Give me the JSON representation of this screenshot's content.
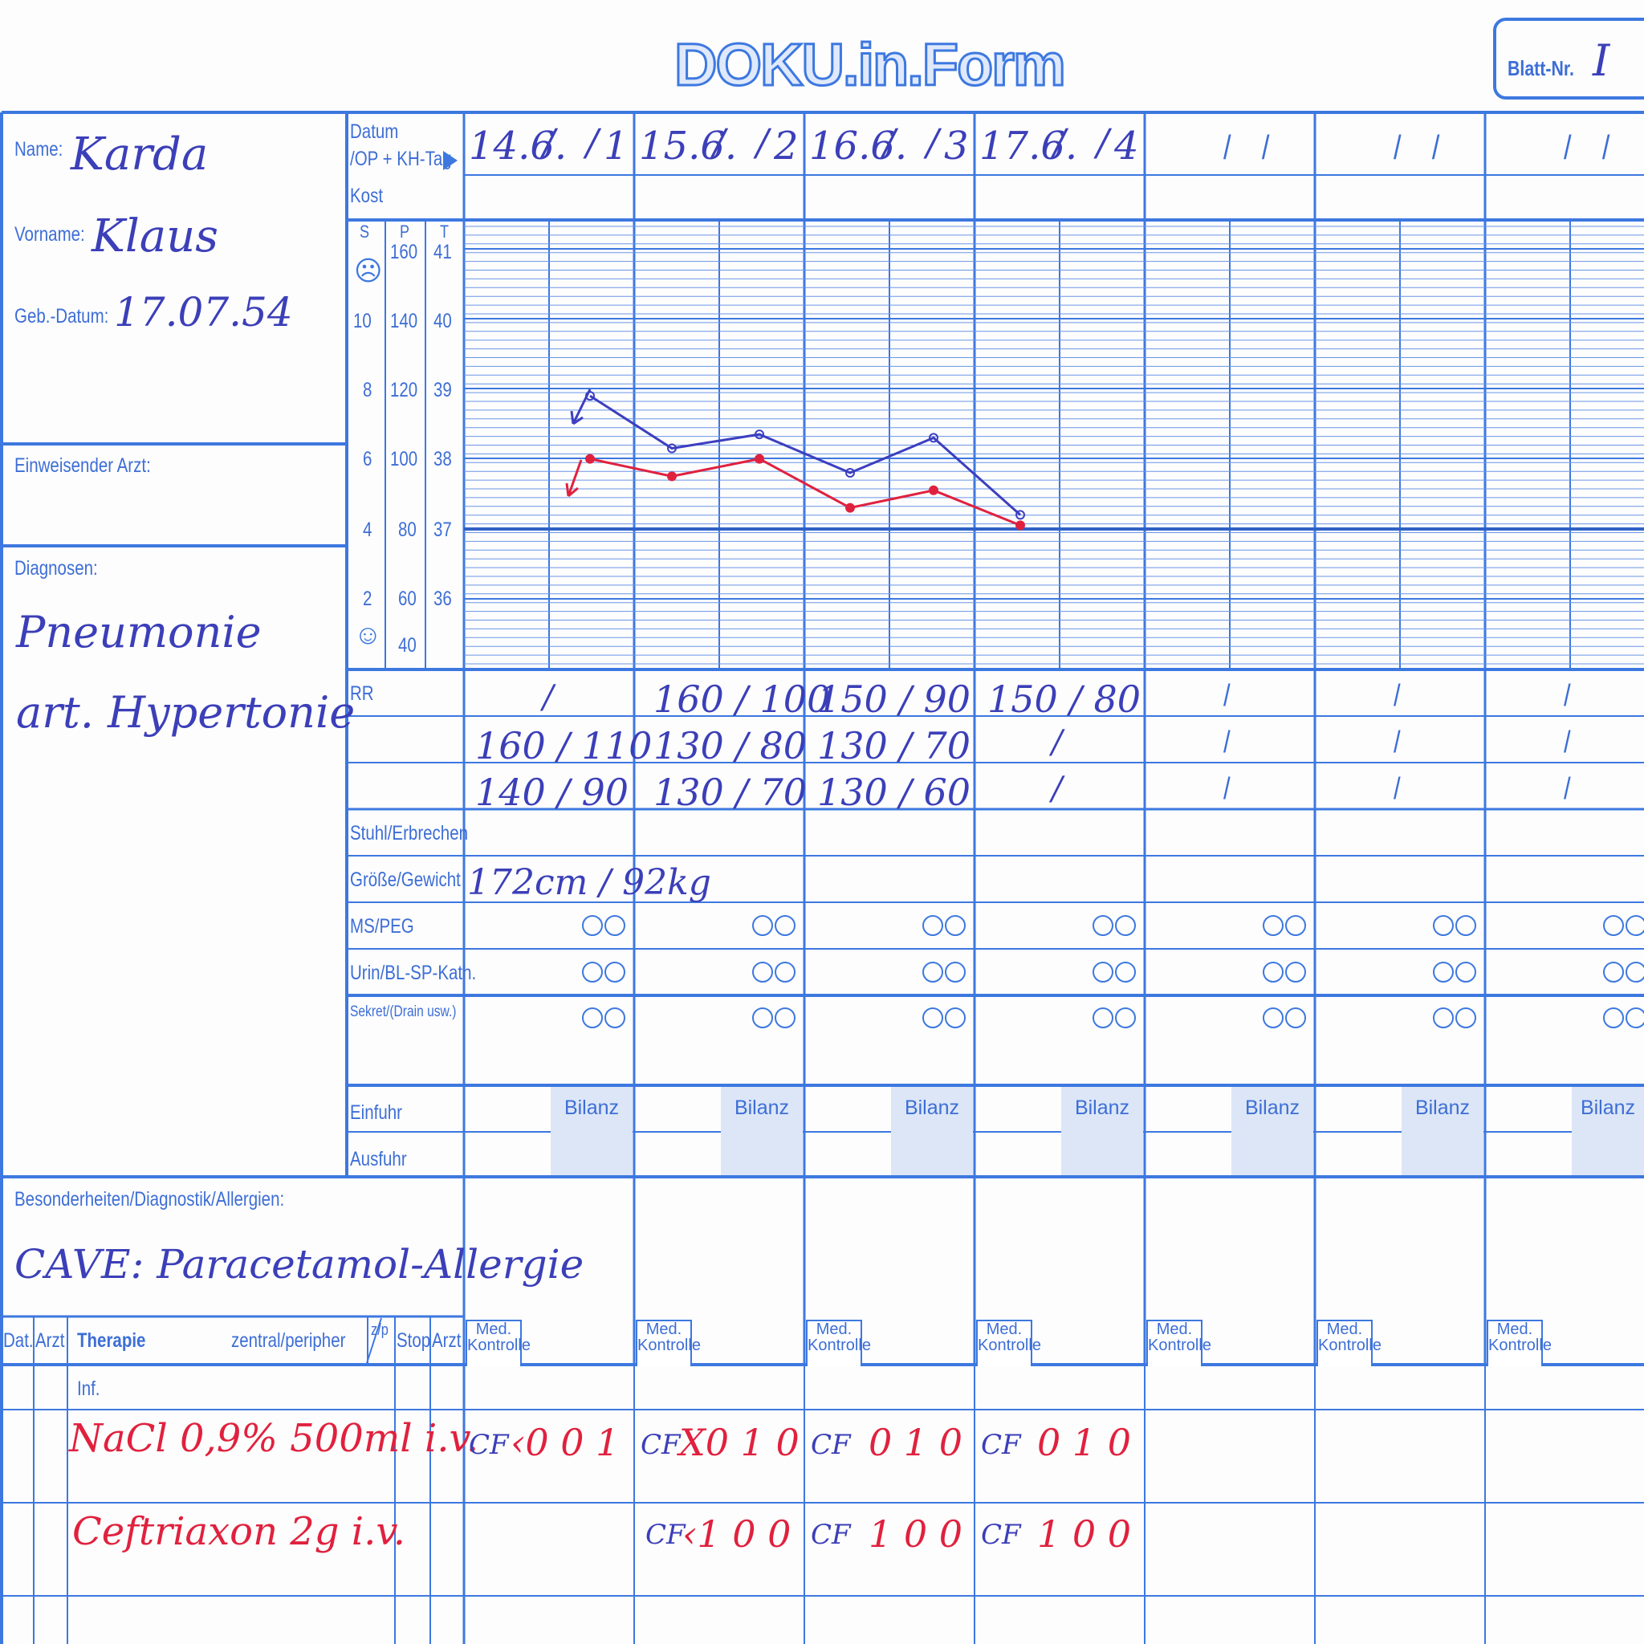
{
  "header": {
    "logo": "DOKU.in.Form",
    "sheet_label": "Blatt-Nr.",
    "sheet_number": "I"
  },
  "patient": {
    "name_label": "Name:",
    "name": "Karda",
    "firstname_label": "Vorname:",
    "firstname": "Klaus",
    "dob_label": "Geb.-Datum:",
    "dob": "17.07.54",
    "referrer_label": "Einweisender Arzt:",
    "diagnoses_label": "Diagnosen:",
    "diagnosis_1": "Pneumonie",
    "diagnosis_2": "art. Hypertonie",
    "notes_label": "Besonderheiten/Diagnostik/Allergien:",
    "notes": "CAVE: Paracetamol-Allergie"
  },
  "rows": {
    "datum": "Datum",
    "op_tag": "/OP + KH-Tag",
    "kost": "Kost",
    "s": "S",
    "p": "P",
    "t": "T",
    "rr": "RR",
    "stuhl": "Stuhl/Erbrechen",
    "groesse": "Größe/Gewicht",
    "ms": "MS/PEG",
    "urin": "Urin/BL-SP-Kath.",
    "sekret": "Sekret/(Drain usw.)",
    "einfuhr": "Einfuhr",
    "ausfuhr": "Ausfuhr",
    "bilanz": "Bilanz"
  },
  "scale": {
    "s": [
      "10",
      "8",
      "6",
      "4",
      "2"
    ],
    "p": [
      "160",
      "140",
      "120",
      "100",
      "80",
      "60",
      "40"
    ],
    "t": [
      "41",
      "40",
      "39",
      "38",
      "37",
      "36"
    ]
  },
  "days": [
    {
      "date": "14.6.",
      "day": "1",
      "rr": [
        "/",
        "160 / 110",
        "140 / 90"
      ],
      "size": "172cm / 92kg"
    },
    {
      "date": "15.6.",
      "day": "2",
      "rr": [
        "160 / 100",
        "130 / 80",
        "130 / 70"
      ]
    },
    {
      "date": "16.6.",
      "day": "3",
      "rr": [
        "150 / 90",
        "130 / 70",
        "130 / 60"
      ]
    },
    {
      "date": "17.6.",
      "day": "4",
      "rr": [
        "150 / 80",
        "/",
        "/"
      ]
    }
  ],
  "therapy": {
    "dat": "Dat.",
    "arzt": "Arzt",
    "title": "Therapie",
    "access": "zentral/peripher",
    "zp": "z/p",
    "stop": "Stop",
    "arzt2": "Arzt",
    "med_ctrl": "Med. Kontrolle",
    "inf": "Inf.",
    "drug_1": "NaCl 0,9% 500ml  i.v.",
    "drug_2": "Ceftriaxon 2g  i.v.",
    "entries_1": [
      {
        "sig": "CF",
        "code": "‹0 0 1"
      },
      {
        "sig": "CF",
        "code": "X0 1 0"
      },
      {
        "sig": "CF",
        "code": "0 1 0"
      },
      {
        "sig": "CF",
        "code": "0 1 0"
      }
    ],
    "entries_2": [
      {
        "sig": "",
        "code": ""
      },
      {
        "sig": "CF",
        "code": "‹1 0 0"
      },
      {
        "sig": "CF",
        "code": "1 0 0"
      },
      {
        "sig": "CF",
        "code": "1 0 0"
      }
    ]
  },
  "chart_data": {
    "type": "line",
    "x": [
      "14.6. abends",
      "15.6. morgens",
      "15.6. abends",
      "16.6. morgens",
      "16.6. abends",
      "17.6. morgens"
    ],
    "series": [
      {
        "axis": "P",
        "values": [
          118,
          103,
          107,
          96,
          106,
          84
        ],
        "color": "#3c3fc0"
      },
      {
        "axis": "T",
        "values": [
          38.0,
          37.75,
          38.0,
          37.3,
          37.55,
          37.05
        ],
        "color": "#e0213e"
      }
    ],
    "p_range": [
      40,
      160
    ],
    "t_range": [
      36,
      41
    ]
  }
}
